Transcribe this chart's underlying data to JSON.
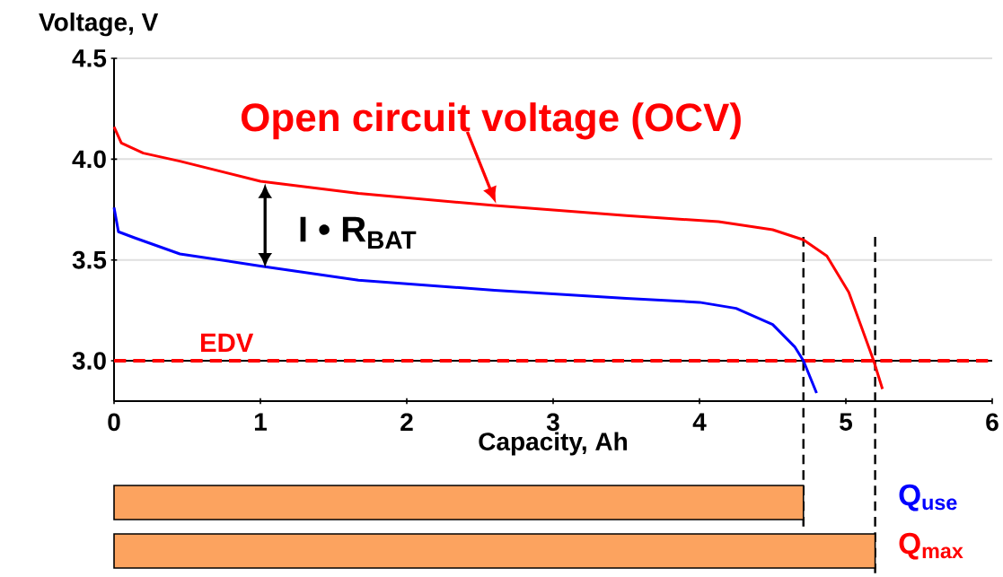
{
  "chart_data": [
    {
      "type": "line",
      "xlabel": "Capacity,  Ah",
      "ylabel": "Voltage, V",
      "xlim": [
        0,
        6
      ],
      "ylim": [
        2.8,
        4.5
      ],
      "xticks": [
        0,
        1,
        2,
        3,
        4,
        5,
        6
      ],
      "yticks": [
        {
          "value": 3.0,
          "label": "3.0"
        },
        {
          "value": 3.5,
          "label": "3.5"
        },
        {
          "value": 4.0,
          "label": "4.0"
        },
        {
          "value": 4.5,
          "label": "4.5"
        }
      ],
      "grid": "y",
      "marker": "none",
      "line_style": "solid",
      "x": [
        0,
        0.05,
        0.2,
        0.45,
        1.0,
        1.67,
        2.6,
        3.5,
        4.13,
        4.5,
        4.71,
        4.87,
        5.02,
        5.11,
        5.19,
        5.25
      ],
      "series": [
        {
          "color": "#ff0000",
          "values": [
            4.16,
            4.08,
            4.03,
            3.99,
            3.89,
            3.83,
            3.77,
            3.72,
            3.69,
            3.65,
            3.6,
            3.52,
            3.34,
            3.16,
            3.0,
            2.86
          ]
        },
        {
          "color": "#0000ff",
          "x": [
            0,
            0.03,
            0.14,
            0.45,
            1.0,
            1.67,
            2.6,
            3.5,
            4.0,
            4.25,
            4.5,
            4.65,
            4.71,
            4.8
          ],
          "values": [
            3.76,
            3.64,
            3.61,
            3.53,
            3.47,
            3.4,
            3.35,
            3.31,
            3.29,
            3.26,
            3.18,
            3.07,
            3.0,
            2.84
          ]
        }
      ],
      "ref_lines": [
        {
          "axis": "y",
          "value": 3.0,
          "label": "EDV",
          "color": "#ff0000",
          "line_style": "dashed"
        },
        {
          "axis": "x",
          "value": 4.71,
          "color": "#000000",
          "line_style": "dashed"
        },
        {
          "axis": "x",
          "value": 5.2,
          "color": "#000000",
          "line_style": "dashed"
        }
      ],
      "annotations": [
        {
          "text": "Open circuit voltage (OCV)",
          "x": 2.61,
          "y": 3.78
        },
        "I • R$_{BAT}$"
      ]
    },
    {
      "type": "bar",
      "orientation": "horizontal",
      "categories": [
        "Q$_{use}$",
        "Q$_{max}$"
      ],
      "values": [
        4.71,
        5.2
      ],
      "color": "#fca35f",
      "xlim": [
        0,
        6
      ],
      "tick_labels": false
    }
  ]
}
